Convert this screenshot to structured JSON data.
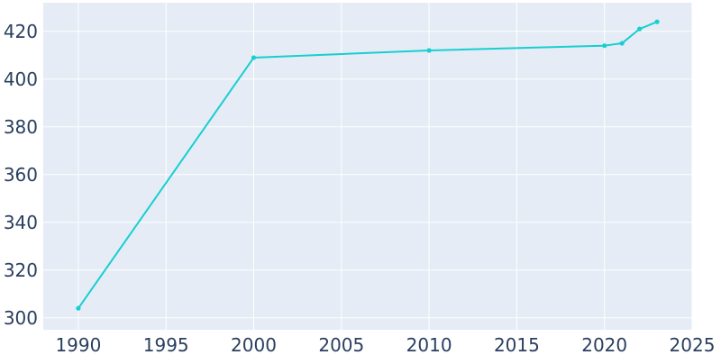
{
  "chart_data": {
    "type": "line",
    "title": "",
    "xlabel": "",
    "ylabel": "",
    "x": [
      1990,
      2000,
      2010,
      2020,
      2021,
      2022,
      2023
    ],
    "series": [
      {
        "values": [
          304,
          409,
          412,
          414,
          415,
          421,
          424
        ],
        "color": "#17cfcf"
      }
    ],
    "xlim": [
      1988,
      2025
    ],
    "ylim": [
      295,
      432
    ],
    "x_ticks": [
      1990,
      1995,
      2000,
      2005,
      2010,
      2015,
      2020,
      2025
    ],
    "y_ticks": [
      300,
      320,
      340,
      360,
      380,
      400,
      420
    ],
    "grid": true,
    "legend": "none",
    "colors": {
      "plot_background": "#e5ecf6",
      "grid": "#ffffff",
      "tick_label": "#2a3f5f",
      "line": "#17cfcf"
    }
  }
}
